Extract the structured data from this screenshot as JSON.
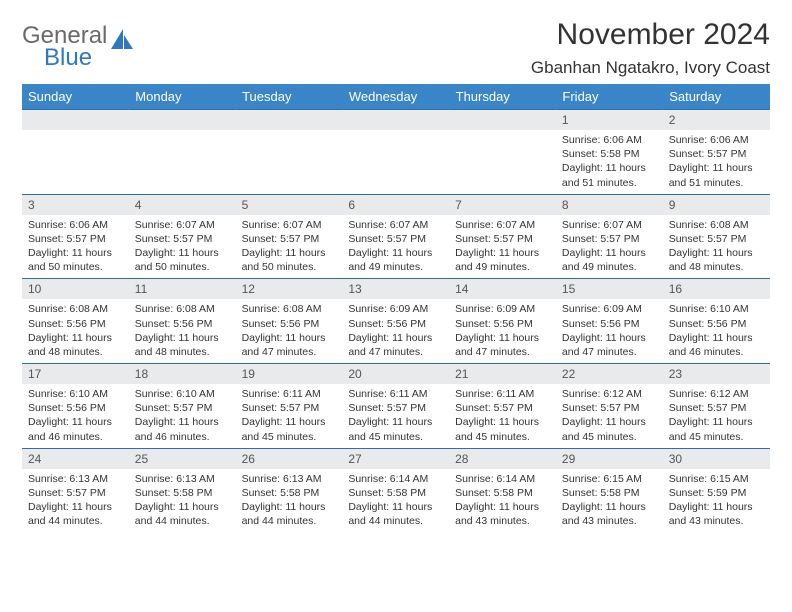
{
  "brand": {
    "part1": "General",
    "part2": "Blue"
  },
  "title": "November 2024",
  "location": "Gbanhan Ngatakro, Ivory Coast",
  "colors": {
    "header_bg": "#3a85c7",
    "header_text": "#ffffff",
    "daynum_bg": "#e9eaeb",
    "border": "#2f6fa8",
    "body_text": "#333333",
    "brand_gray": "#6a6a6a",
    "brand_blue": "#2f78bd"
  },
  "weekdays": [
    "Sunday",
    "Monday",
    "Tuesday",
    "Wednesday",
    "Thursday",
    "Friday",
    "Saturday"
  ],
  "weeks": [
    [
      null,
      null,
      null,
      null,
      null,
      {
        "n": "1",
        "sr": "6:06 AM",
        "ss": "5:58 PM",
        "dl": "11 hours and 51 minutes."
      },
      {
        "n": "2",
        "sr": "6:06 AM",
        "ss": "5:57 PM",
        "dl": "11 hours and 51 minutes."
      }
    ],
    [
      {
        "n": "3",
        "sr": "6:06 AM",
        "ss": "5:57 PM",
        "dl": "11 hours and 50 minutes."
      },
      {
        "n": "4",
        "sr": "6:07 AM",
        "ss": "5:57 PM",
        "dl": "11 hours and 50 minutes."
      },
      {
        "n": "5",
        "sr": "6:07 AM",
        "ss": "5:57 PM",
        "dl": "11 hours and 50 minutes."
      },
      {
        "n": "6",
        "sr": "6:07 AM",
        "ss": "5:57 PM",
        "dl": "11 hours and 49 minutes."
      },
      {
        "n": "7",
        "sr": "6:07 AM",
        "ss": "5:57 PM",
        "dl": "11 hours and 49 minutes."
      },
      {
        "n": "8",
        "sr": "6:07 AM",
        "ss": "5:57 PM",
        "dl": "11 hours and 49 minutes."
      },
      {
        "n": "9",
        "sr": "6:08 AM",
        "ss": "5:57 PM",
        "dl": "11 hours and 48 minutes."
      }
    ],
    [
      {
        "n": "10",
        "sr": "6:08 AM",
        "ss": "5:56 PM",
        "dl": "11 hours and 48 minutes."
      },
      {
        "n": "11",
        "sr": "6:08 AM",
        "ss": "5:56 PM",
        "dl": "11 hours and 48 minutes."
      },
      {
        "n": "12",
        "sr": "6:08 AM",
        "ss": "5:56 PM",
        "dl": "11 hours and 47 minutes."
      },
      {
        "n": "13",
        "sr": "6:09 AM",
        "ss": "5:56 PM",
        "dl": "11 hours and 47 minutes."
      },
      {
        "n": "14",
        "sr": "6:09 AM",
        "ss": "5:56 PM",
        "dl": "11 hours and 47 minutes."
      },
      {
        "n": "15",
        "sr": "6:09 AM",
        "ss": "5:56 PM",
        "dl": "11 hours and 47 minutes."
      },
      {
        "n": "16",
        "sr": "6:10 AM",
        "ss": "5:56 PM",
        "dl": "11 hours and 46 minutes."
      }
    ],
    [
      {
        "n": "17",
        "sr": "6:10 AM",
        "ss": "5:56 PM",
        "dl": "11 hours and 46 minutes."
      },
      {
        "n": "18",
        "sr": "6:10 AM",
        "ss": "5:57 PM",
        "dl": "11 hours and 46 minutes."
      },
      {
        "n": "19",
        "sr": "6:11 AM",
        "ss": "5:57 PM",
        "dl": "11 hours and 45 minutes."
      },
      {
        "n": "20",
        "sr": "6:11 AM",
        "ss": "5:57 PM",
        "dl": "11 hours and 45 minutes."
      },
      {
        "n": "21",
        "sr": "6:11 AM",
        "ss": "5:57 PM",
        "dl": "11 hours and 45 minutes."
      },
      {
        "n": "22",
        "sr": "6:12 AM",
        "ss": "5:57 PM",
        "dl": "11 hours and 45 minutes."
      },
      {
        "n": "23",
        "sr": "6:12 AM",
        "ss": "5:57 PM",
        "dl": "11 hours and 45 minutes."
      }
    ],
    [
      {
        "n": "24",
        "sr": "6:13 AM",
        "ss": "5:57 PM",
        "dl": "11 hours and 44 minutes."
      },
      {
        "n": "25",
        "sr": "6:13 AM",
        "ss": "5:58 PM",
        "dl": "11 hours and 44 minutes."
      },
      {
        "n": "26",
        "sr": "6:13 AM",
        "ss": "5:58 PM",
        "dl": "11 hours and 44 minutes."
      },
      {
        "n": "27",
        "sr": "6:14 AM",
        "ss": "5:58 PM",
        "dl": "11 hours and 44 minutes."
      },
      {
        "n": "28",
        "sr": "6:14 AM",
        "ss": "5:58 PM",
        "dl": "11 hours and 43 minutes."
      },
      {
        "n": "29",
        "sr": "6:15 AM",
        "ss": "5:58 PM",
        "dl": "11 hours and 43 minutes."
      },
      {
        "n": "30",
        "sr": "6:15 AM",
        "ss": "5:59 PM",
        "dl": "11 hours and 43 minutes."
      }
    ]
  ],
  "labels": {
    "sunrise": "Sunrise: ",
    "sunset": "Sunset: ",
    "daylight": "Daylight: "
  }
}
